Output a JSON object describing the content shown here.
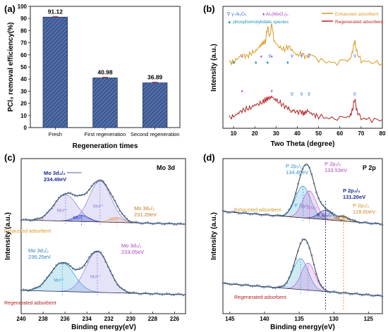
{
  "panels": {
    "a": {
      "label": "(a)"
    },
    "b": {
      "label": "(b)"
    },
    "c": {
      "label": "(c)",
      "title": "Mo 3d"
    },
    "d": {
      "label": "(d)",
      "title": "P 2p"
    }
  },
  "colors": {
    "bar": "#3e5a96",
    "exhausted": "#d79a24",
    "regenerated": "#b22222",
    "raw_points": "#4a6f9e",
    "mo_6plus": "#8a7fe0",
    "mo_5plus": "#2a3fd0",
    "mo_4plus": "#e8a070",
    "p_low": "#2aa0d0",
    "p_high": "#c060d0",
    "p_mid": "#1a2a90",
    "p_extra": "#e08a20"
  },
  "chart_data": [
    {
      "id": "a",
      "type": "bar",
      "title": "",
      "xlabel": "Regeneration times",
      "ylabel": "PCl₃ removal efficiency(%)",
      "ylim": [
        0,
        100
      ],
      "yticks": [
        0,
        10,
        20,
        30,
        40,
        50,
        60,
        70,
        80,
        90,
        100
      ],
      "categories": [
        "Fresh",
        "First regeneration",
        "Second regeneration"
      ],
      "values": [
        91.12,
        40.98,
        36.89
      ],
      "data_labels": [
        "91.12",
        "40.98",
        "36.89"
      ]
    },
    {
      "id": "b",
      "type": "line",
      "title": "",
      "xlabel": "Two Theta (degree)",
      "ylabel": "Intensity (a.u.)",
      "xlim": [
        5,
        80
      ],
      "xticks": [
        10,
        20,
        30,
        40,
        50,
        60,
        70,
        80
      ],
      "legend_top_left": [
        "∇ γ-Al₂O₃",
        "♦ Al₂(MoO₄)₃",
        "▲ phosphomolybdate species"
      ],
      "series": [
        {
          "name": "Exhausted adsorbent",
          "x": [
            8,
            10,
            12,
            14,
            16,
            18,
            20,
            21,
            22,
            23,
            24,
            25,
            26,
            27,
            28,
            29,
            30,
            32,
            34,
            36,
            38,
            40,
            42,
            44,
            46,
            50,
            55,
            60,
            63,
            65,
            66,
            67,
            68,
            70,
            75,
            80
          ],
          "y": [
            0.35,
            0.38,
            0.45,
            0.55,
            0.5,
            0.56,
            0.62,
            0.66,
            0.72,
            0.78,
            0.82,
            0.85,
            1.2,
            0.95,
            1.28,
            0.88,
            0.8,
            0.7,
            0.66,
            0.74,
            0.62,
            0.52,
            0.58,
            0.48,
            0.55,
            0.42,
            0.36,
            0.34,
            0.38,
            0.45,
            0.62,
            0.88,
            0.6,
            0.4,
            0.36,
            0.34
          ]
        },
        {
          "name": "Regenerated adsorbent",
          "x": [
            8,
            10,
            12,
            14,
            16,
            18,
            20,
            22,
            24,
            25,
            26,
            27,
            28,
            29,
            30,
            32,
            34,
            36,
            37,
            38,
            40,
            42,
            43,
            44,
            45,
            46,
            48,
            50,
            55,
            60,
            63,
            65,
            66,
            67,
            68,
            70,
            75,
            80
          ],
          "y": [
            -0.75,
            -0.72,
            -0.65,
            -0.58,
            -0.55,
            -0.52,
            -0.45,
            -0.42,
            -0.38,
            -0.33,
            -0.3,
            -0.28,
            -0.25,
            -0.3,
            -0.34,
            -0.4,
            -0.48,
            -0.52,
            -0.62,
            -0.58,
            -0.62,
            -0.6,
            -0.66,
            -0.62,
            -0.58,
            -0.64,
            -0.68,
            -0.72,
            -0.76,
            -0.78,
            -0.74,
            -0.7,
            -0.55,
            -0.3,
            -0.58,
            -0.76,
            -0.8,
            -0.8
          ]
        }
      ]
    },
    {
      "id": "c",
      "type": "line",
      "title": "Mo 3d",
      "xlabel": "Binding energy(eV)",
      "ylabel": "Intensity (a.u.)",
      "xlim": [
        240,
        225
      ],
      "xticks": [
        240,
        238,
        236,
        234,
        232,
        230,
        228,
        226
      ],
      "groups": [
        {
          "name": "Exhausted adsorbent",
          "peaks": [
            {
              "label": "Mo⁶⁺",
              "center": 235.95,
              "height": 0.65,
              "width": 1.05
            },
            {
              "label": "Mo⁶⁺",
              "center": 232.8,
              "height": 1.0,
              "width": 1.0
            },
            {
              "label": "Mo⁵⁺",
              "center": 234.49,
              "height": 0.15,
              "width": 0.7
            },
            {
              "label": "Mo⁴⁺",
              "center": 231.29,
              "height": 0.12,
              "width": 0.6
            }
          ],
          "annotations": [
            {
              "text": "Mo 3d₃/₂",
              "value": "234.49eV"
            },
            {
              "text": "Mo 3d₅/₂",
              "value": "231.29eV"
            }
          ]
        },
        {
          "name": "Regenerated adsorbent",
          "peaks": [
            {
              "label": "Mo⁶⁺",
              "center": 236.25,
              "height": 0.7,
              "width": 1.1
            },
            {
              "label": "Mo⁶⁺",
              "center": 233.05,
              "height": 1.0,
              "width": 1.05
            }
          ],
          "annotations": [
            {
              "text": "Mo 3d₃/₂",
              "value": "236.25eV"
            },
            {
              "text": "Mo 3d₅/₂",
              "value": "233.05eV"
            }
          ]
        }
      ]
    },
    {
      "id": "d",
      "type": "line",
      "title": "P 2p",
      "xlabel": "Binding energy(eV)",
      "ylabel": "Intensity (a.u.)",
      "xlim": [
        146,
        123
      ],
      "xticks": [
        145,
        140,
        135,
        130,
        125
      ],
      "groups": [
        {
          "name": "Exhausted adsorbent",
          "peaks": [
            {
              "label": "P 2p₁/₂",
              "center": 134.45,
              "height": 0.75,
              "width": 1.1
            },
            {
              "label": "P 2p₃/₂",
              "center": 133.53,
              "height": 0.65,
              "width": 1.0
            },
            {
              "label": "P 2p₃/₂",
              "center": 131.2,
              "height": 0.22,
              "width": 1.0
            },
            {
              "label": "P 2p₃/₂",
              "center": 128.6,
              "height": 0.1,
              "width": 0.9
            }
          ],
          "annotations": [
            {
              "text": "P 2p₁/₂",
              "value": "134.45eV"
            },
            {
              "text": "P 2p₃/₂",
              "value": "133.53eV"
            },
            {
              "text": "P 2p₃/₂",
              "value": "131.20eV"
            },
            {
              "text": "P 2p₃/₂",
              "value": "128.60eV"
            }
          ]
        },
        {
          "name": "Regenerated adsorbent",
          "peaks": [
            {
              "label": "",
              "center": 134.8,
              "height": 0.8,
              "width": 1.1
            },
            {
              "label": "",
              "center": 133.7,
              "height": 0.7,
              "width": 1.0
            }
          ],
          "annotations": []
        }
      ]
    }
  ]
}
